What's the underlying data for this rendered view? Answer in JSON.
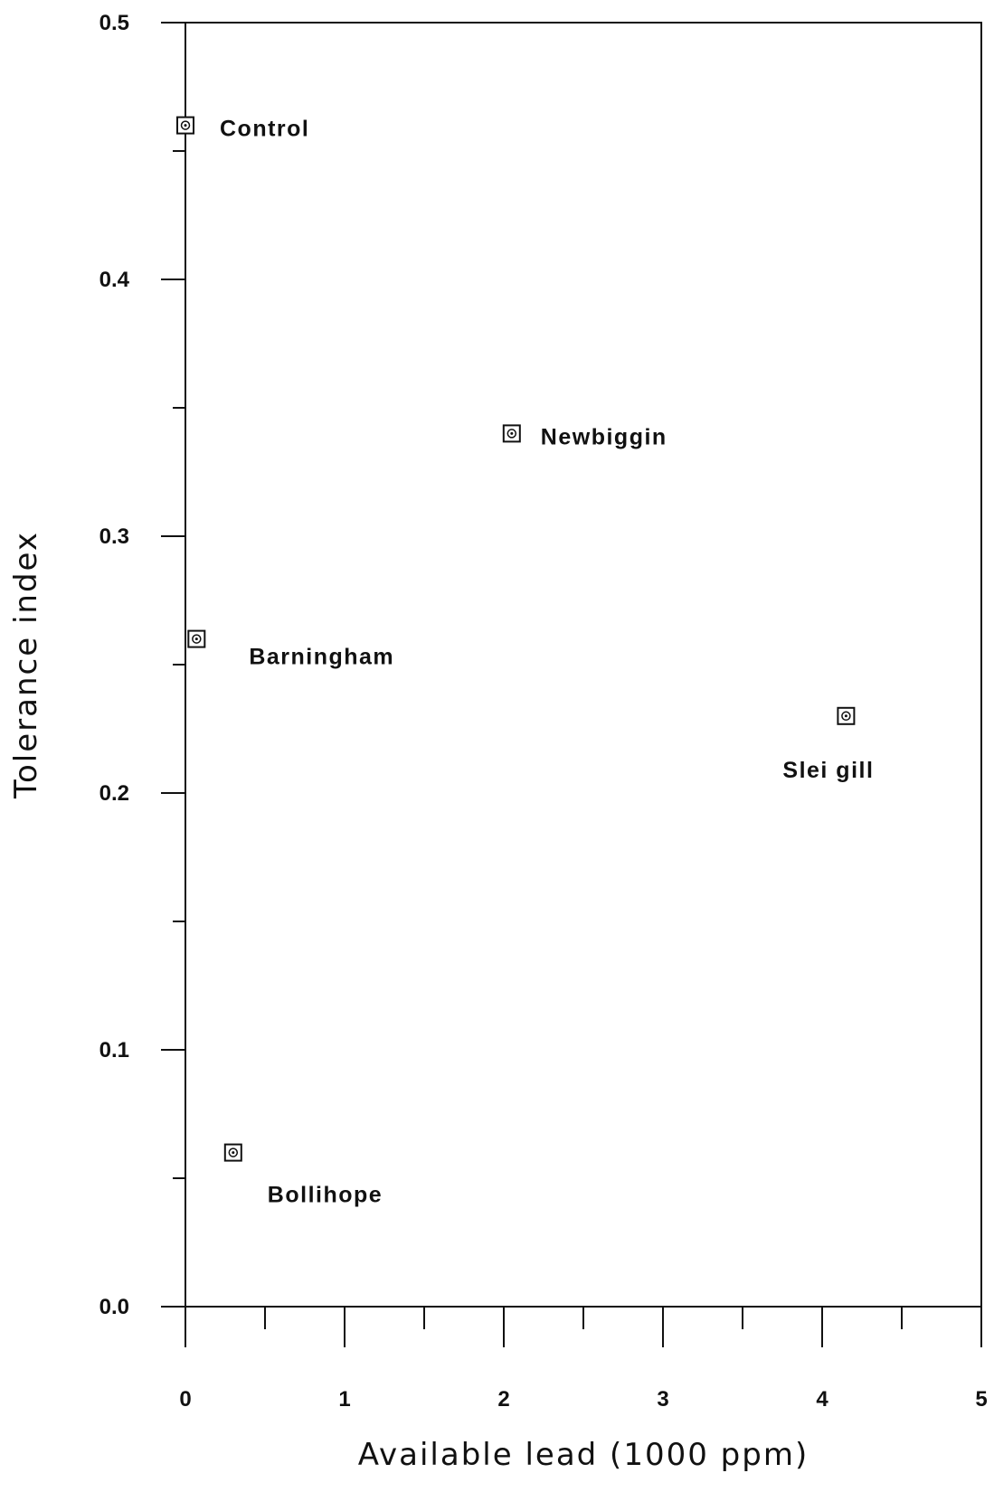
{
  "chart_data": {
    "type": "scatter",
    "title": "",
    "xlabel": "Available lead (1000 ppm)",
    "ylabel": "Tolerance index",
    "xlim": [
      0,
      5
    ],
    "ylim": [
      0,
      0.5
    ],
    "x_ticks": [
      "0",
      "1",
      "2",
      "3",
      "4",
      "5"
    ],
    "y_ticks": [
      "0.0",
      "0.1",
      "0.2",
      "0.3",
      "0.4",
      "0.5"
    ],
    "grid": false,
    "points": [
      {
        "label": "Control",
        "x": 0.0,
        "y": 0.46
      },
      {
        "label": "Newbiggin",
        "x": 2.05,
        "y": 0.34
      },
      {
        "label": "Barningham",
        "x": 0.07,
        "y": 0.26
      },
      {
        "label": "Slei gill",
        "x": 4.15,
        "y": 0.23
      },
      {
        "label": "Bollihope",
        "x": 0.3,
        "y": 0.06
      }
    ]
  }
}
